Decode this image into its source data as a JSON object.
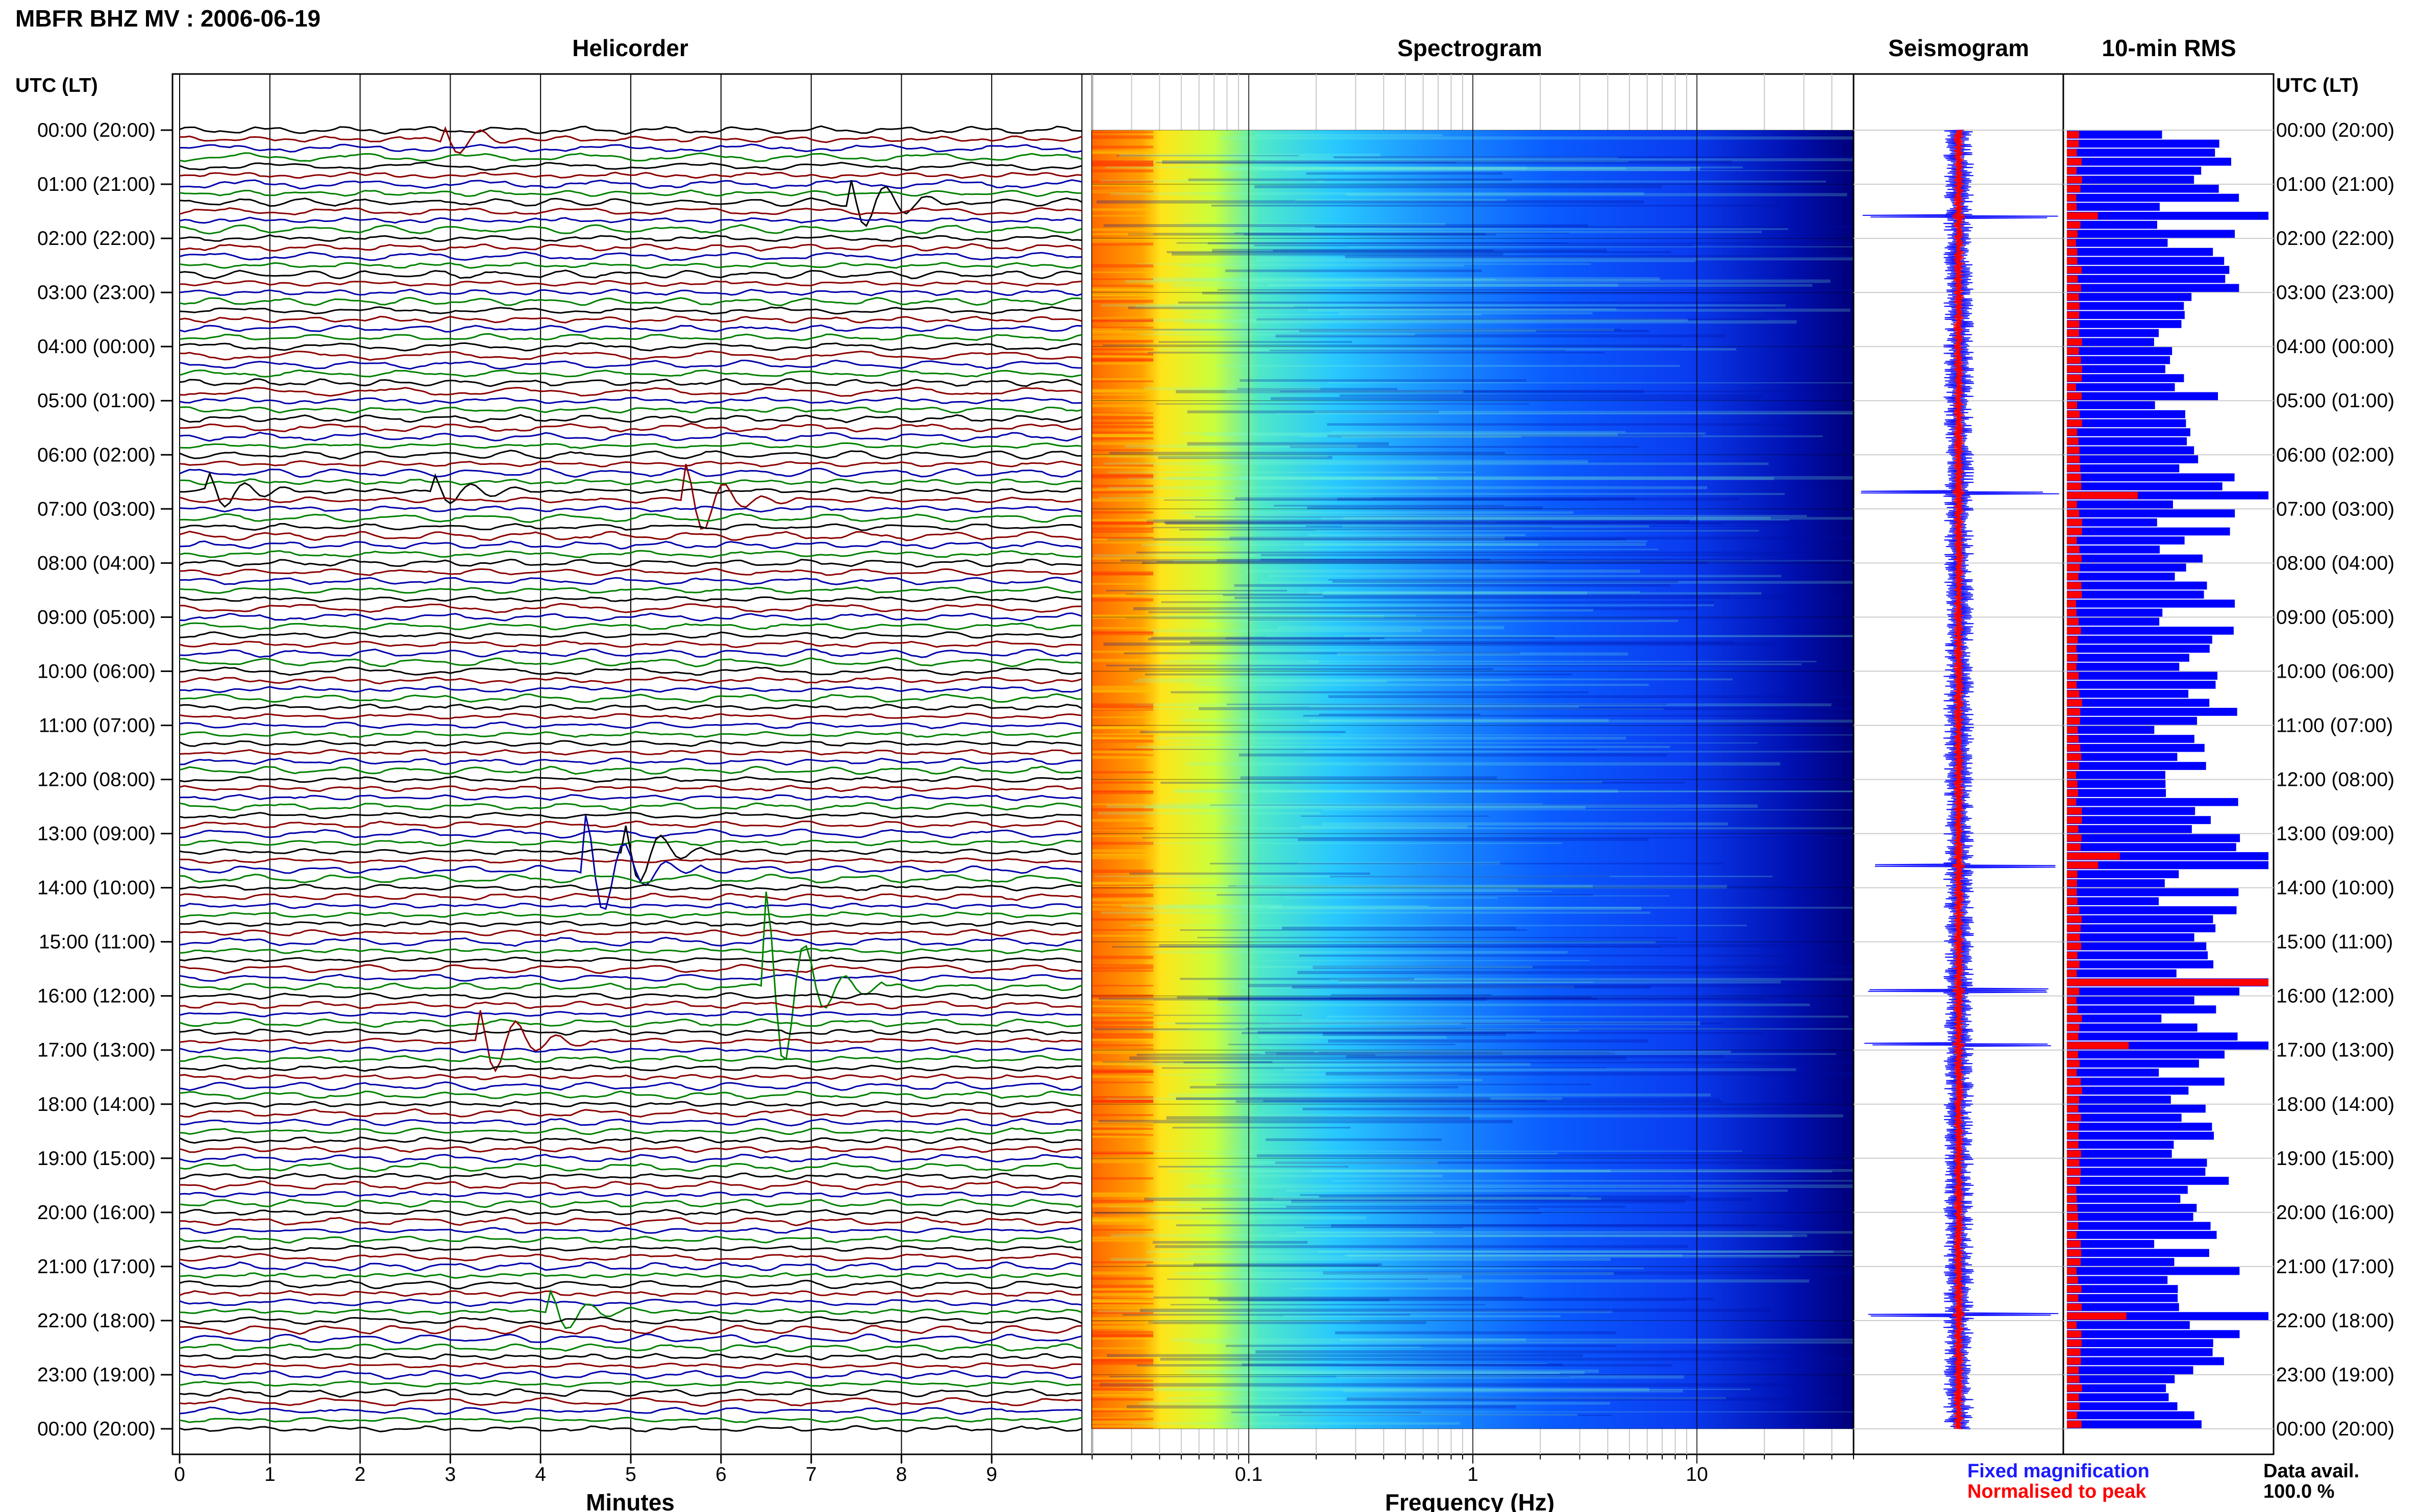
{
  "header": {
    "title": "MBFR BHZ MV : 2006-06-19",
    "utc_label_left": "UTC (LT)",
    "utc_label_right": "UTC (LT)"
  },
  "panels": {
    "helicorder_title": "Helicorder",
    "spectrogram_title": "Spectrogram",
    "seismogram_title": "Seismogram",
    "rms_title": "10-min RMS"
  },
  "legend": {
    "fixed": "Fixed magnification",
    "normalised": "Normalised to peak",
    "fixed_color": "#1a1aff",
    "normalised_color": "#ff0000",
    "data_avail_label": "Data avail.",
    "data_avail_value": "100.0 %"
  },
  "colors": {
    "trace_cycle": [
      "#000000",
      "#8b0000",
      "#0000aa",
      "#008000"
    ],
    "rms_fixed": "#0000ff",
    "rms_norm": "#ff0000",
    "spectrogram_scale": [
      "#00007f",
      "#0000ff",
      "#0080ff",
      "#00ffff",
      "#80ff80",
      "#ffff00",
      "#ff8000",
      "#ff0000"
    ]
  },
  "chart_data": [
    {
      "type": "line",
      "panel": "helicorder",
      "xlabel": "Minutes",
      "xlim": [
        0,
        10
      ],
      "x_ticks": [
        "0",
        "1",
        "2",
        "3",
        "4",
        "5",
        "6",
        "7",
        "8",
        "9"
      ],
      "rows": 145,
      "row_minutes": 10,
      "time_labels": [
        "00:00 (20:00)",
        "01:00 (21:00)",
        "02:00 (22:00)",
        "03:00 (23:00)",
        "04:00 (00:00)",
        "05:00 (01:00)",
        "06:00 (02:00)",
        "07:00 (03:00)",
        "08:00 (04:00)",
        "09:00 (05:00)",
        "10:00 (06:00)",
        "11:00 (07:00)",
        "12:00 (08:00)",
        "13:00 (09:00)",
        "14:00 (10:00)",
        "15:00 (11:00)",
        "16:00 (12:00)",
        "17:00 (13:00)",
        "18:00 (14:00)",
        "19:00 (15:00)",
        "20:00 (16:00)",
        "21:00 (17:00)",
        "22:00 (18:00)",
        "23:00 (19:00)",
        "00:00 (20:00)"
      ],
      "events": [
        {
          "hour": 0.1,
          "minute": 3.0,
          "amp": 1.0
        },
        {
          "hour": 1.4,
          "minute": 7.5,
          "amp": 1.8
        },
        {
          "hour": 6.7,
          "minute": 0.4,
          "amp": 1.0
        },
        {
          "hour": 6.7,
          "minute": 2.9,
          "amp": 1.0
        },
        {
          "hour": 6.9,
          "minute": 5.7,
          "amp": 2.0
        },
        {
          "hour": 13.6,
          "minute": 4.6,
          "amp": 3.0
        },
        {
          "hour": 13.3,
          "minute": 5.0,
          "amp": 2.0
        },
        {
          "hour": 15.8,
          "minute": 6.6,
          "amp": 5.0
        },
        {
          "hour": 16.9,
          "minute": 3.4,
          "amp": 2.0
        },
        {
          "hour": 21.9,
          "minute": 4.2,
          "amp": 1.2
        }
      ]
    },
    {
      "type": "heatmap",
      "panel": "spectrogram",
      "xlabel": "Frequency (Hz)",
      "x_scale": "log",
      "xlim": [
        0.02,
        50
      ],
      "x_ticks": [
        0.1,
        1,
        10
      ],
      "x_tick_labels": [
        "0.1",
        "1",
        "10"
      ],
      "energy_bands": [
        {
          "f_min": 0.02,
          "f_max": 0.06,
          "color": "#ff7b00"
        },
        {
          "f_min": 0.06,
          "f_max": 0.15,
          "color": "#e8ff20"
        },
        {
          "f_min": 0.15,
          "f_max": 1.0,
          "color": "#3fd6ff"
        },
        {
          "f_min": 1.0,
          "f_max": 20,
          "color": "#0a52ff"
        },
        {
          "f_min": 20,
          "f_max": 50,
          "color": "#000090"
        }
      ]
    },
    {
      "type": "line",
      "panel": "seismogram",
      "series": [
        {
          "name": "Fixed magnification",
          "color": "#1a1aff"
        },
        {
          "name": "Normalised to peak",
          "color": "#ff0000"
        }
      ],
      "spikes_hours": [
        1.6,
        6.7,
        13.6,
        15.9,
        16.9,
        21.9
      ]
    },
    {
      "type": "bar",
      "panel": "10-min RMS",
      "orientation": "horizontal",
      "bars_per_hour": 6,
      "hours": 24,
      "peaks_hours": [
        1.6,
        6.7,
        13.5,
        15.8,
        16.9,
        21.9
      ],
      "series": [
        {
          "name": "Fixed magnification",
          "color": "#0000ff"
        },
        {
          "name": "Normalised to peak",
          "color": "#ff0000"
        }
      ]
    }
  ]
}
